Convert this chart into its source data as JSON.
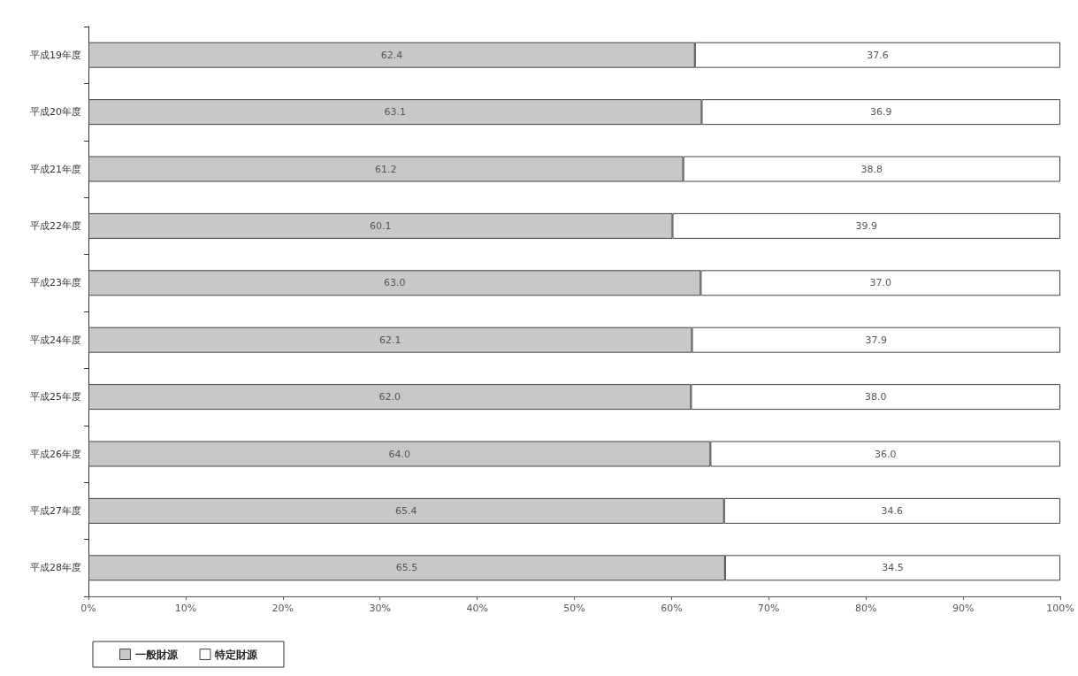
{
  "chart_data": {
    "type": "bar",
    "orientation": "horizontal",
    "stacked": true,
    "categories": [
      "平成19年度",
      "平成20年度",
      "平成21年度",
      "平成22年度",
      "平成23年度",
      "平成24年度",
      "平成25年度",
      "平成26年度",
      "平成27年度",
      "平成28年度"
    ],
    "series": [
      {
        "name": "一般財源",
        "color": "#c8c8c8",
        "values": [
          62.4,
          63.1,
          61.2,
          60.1,
          63.0,
          62.1,
          62.0,
          64.0,
          65.4,
          65.5
        ],
        "value_labels": [
          "62.4",
          "63.1",
          "61.2",
          "60.1",
          "63.0",
          "62.1",
          "62.0",
          "64.0",
          "65.4",
          "65.5"
        ]
      },
      {
        "name": "特定財源",
        "color": "#ffffff",
        "values": [
          37.6,
          36.9,
          38.8,
          39.9,
          37.0,
          37.9,
          38.0,
          36.0,
          34.6,
          34.5
        ],
        "value_labels": [
          "37.6",
          "36.9",
          "38.8",
          "39.9",
          "37.0",
          "37.9",
          "38.0",
          "36.0",
          "34.6",
          "34.5"
        ]
      }
    ],
    "xlim": [
      0,
      100
    ],
    "xticks": [
      {
        "value": 0,
        "label": "0%"
      },
      {
        "value": 10,
        "label": "10%"
      },
      {
        "value": 20,
        "label": "20%"
      },
      {
        "value": 30,
        "label": "30%"
      },
      {
        "value": 40,
        "label": "40%"
      },
      {
        "value": 50,
        "label": "50%"
      },
      {
        "value": 60,
        "label": "60%"
      },
      {
        "value": 70,
        "label": "70%"
      },
      {
        "value": 80,
        "label": "80%"
      },
      {
        "value": 90,
        "label": "90%"
      },
      {
        "value": 100,
        "label": "100%"
      }
    ],
    "grid": false,
    "legend": "bottom left"
  }
}
